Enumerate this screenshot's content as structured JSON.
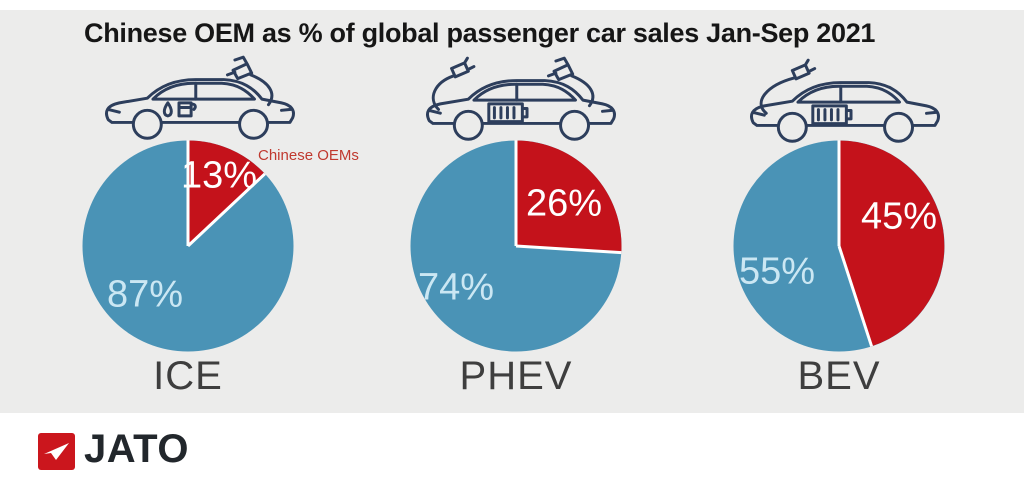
{
  "title": "Chinese OEM as % of global passenger car sales Jan-Sep 2021",
  "annotation_label": "Chinese OEMs",
  "logo": {
    "text": "JATO",
    "icon": "jato-arrow-icon"
  },
  "colors": {
    "chinese_oem_red": "#c4121b",
    "other_oem_blue": "#4a93b6",
    "pale_blue_label": "#cbe7f3",
    "white_label": "#ffffff",
    "background_gray": "#ececeb",
    "footer_white": "#ffffff",
    "car_outline_navy": "#2d3e5c",
    "annotation_red": "#c0392f",
    "category_label_gray": "#3e3e3e",
    "logo_red": "#cb161d",
    "logo_text_dark": "#22272c"
  },
  "chart_data": [
    {
      "type": "pie",
      "category": "ICE",
      "icon": "ice-car-fuel-nozzle-icon",
      "direction": "clockwise",
      "start_angle_deg": 0,
      "annotation": "Chinese OEMs",
      "slices": [
        {
          "name": "Chinese OEMs",
          "value_pct": 13,
          "label": "13%",
          "color": "#c4121b"
        },
        {
          "value_pct": 87,
          "label": "87%",
          "color": "#4a93b6"
        }
      ]
    },
    {
      "type": "pie",
      "category": "PHEV",
      "icon": "phev-car-plug-and-fuel-nozzle-icon",
      "direction": "clockwise",
      "start_angle_deg": 0,
      "slices": [
        {
          "name": "Chinese OEMs",
          "value_pct": 26,
          "label": "26%",
          "color": "#c4121b"
        },
        {
          "value_pct": 74,
          "label": "74%",
          "color": "#4a93b6"
        }
      ]
    },
    {
      "type": "pie",
      "category": "BEV",
      "icon": "bev-car-plug-icon",
      "direction": "clockwise",
      "start_angle_deg": 0,
      "slices": [
        {
          "name": "Chinese OEMs",
          "value_pct": 45,
          "label": "45%",
          "color": "#c4121b"
        },
        {
          "value_pct": 55,
          "label": "55%",
          "color": "#4a93b6"
        }
      ]
    }
  ]
}
